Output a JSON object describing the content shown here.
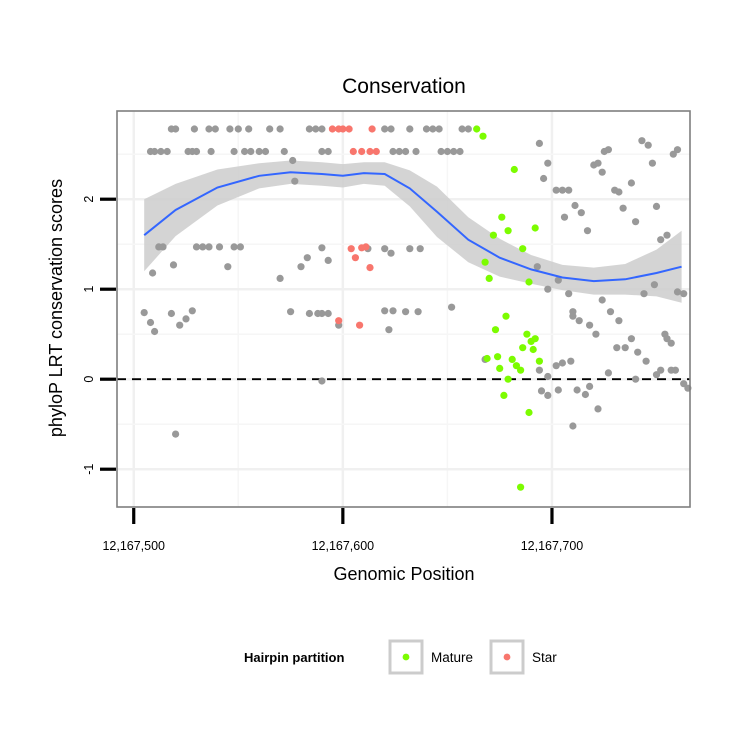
{
  "chart_data": {
    "type": "scatter",
    "title": "Conservation",
    "xlabel": "Genomic Position",
    "ylabel": "phyloP LRT conservation scores",
    "xlim": [
      12167492,
      12167766
    ],
    "ylim": [
      -1.42,
      2.98
    ],
    "x_ticks": [
      12167500,
      12167600,
      12167700
    ],
    "x_tick_labels": [
      "12,167,500",
      "12,167,600",
      "12,167,700"
    ],
    "y_ticks": [
      -1,
      0,
      1,
      2
    ],
    "y_tick_labels": [
      "-1",
      "0",
      "1",
      "2"
    ],
    "reference_line": {
      "y": 0,
      "style": "dashed"
    },
    "legend": {
      "title": "Hairpin partition",
      "position": "bottom",
      "entries": [
        {
          "label": "Mature",
          "color": "#7cfc00"
        },
        {
          "label": "Star",
          "color": "#f8766d"
        }
      ]
    },
    "colors": {
      "other": "#999999",
      "Mature": "#7cfc00",
      "Star": "#f8766d",
      "smooth": "#3366ff",
      "band": "#cccccc"
    },
    "series": [
      {
        "name": "Other",
        "points": [
          [
            12167508,
            2.53
          ],
          [
            12167510,
            2.53
          ],
          [
            12167513,
            2.53
          ],
          [
            12167516,
            2.53
          ],
          [
            12167526,
            2.53
          ],
          [
            12167528,
            2.53
          ],
          [
            12167530,
            2.53
          ],
          [
            12167537,
            2.53
          ],
          [
            12167548,
            2.53
          ],
          [
            12167553,
            2.53
          ],
          [
            12167556,
            2.53
          ],
          [
            12167560,
            2.53
          ],
          [
            12167563,
            2.53
          ],
          [
            12167572,
            2.53
          ],
          [
            12167590,
            2.53
          ],
          [
            12167593,
            2.53
          ],
          [
            12167624,
            2.53
          ],
          [
            12167627,
            2.53
          ],
          [
            12167630,
            2.53
          ],
          [
            12167635,
            2.53
          ],
          [
            12167647,
            2.53
          ],
          [
            12167650,
            2.53
          ],
          [
            12167653,
            2.53
          ],
          [
            12167656,
            2.53
          ],
          [
            12167518,
            2.78
          ],
          [
            12167520,
            2.78
          ],
          [
            12167529,
            2.78
          ],
          [
            12167536,
            2.78
          ],
          [
            12167539,
            2.78
          ],
          [
            12167546,
            2.78
          ],
          [
            12167550,
            2.78
          ],
          [
            12167555,
            2.78
          ],
          [
            12167565,
            2.78
          ],
          [
            12167570,
            2.78
          ],
          [
            12167584,
            2.78
          ],
          [
            12167587,
            2.78
          ],
          [
            12167590,
            2.78
          ],
          [
            12167620,
            2.78
          ],
          [
            12167623,
            2.78
          ],
          [
            12167632,
            2.78
          ],
          [
            12167640,
            2.78
          ],
          [
            12167643,
            2.78
          ],
          [
            12167646,
            2.78
          ],
          [
            12167657,
            2.78
          ],
          [
            12167660,
            2.78
          ],
          [
            12167576,
            2.43
          ],
          [
            12167577,
            2.2
          ],
          [
            12167612,
            1.45
          ],
          [
            12167620,
            1.45
          ],
          [
            12167623,
            1.4
          ],
          [
            12167637,
            1.45
          ],
          [
            12167632,
            1.45
          ],
          [
            12167590,
            1.46
          ],
          [
            12167593,
            1.32
          ],
          [
            12167505,
            0.74
          ],
          [
            12167508,
            0.63
          ],
          [
            12167510,
            0.53
          ],
          [
            12167518,
            0.73
          ],
          [
            12167522,
            0.6
          ],
          [
            12167525,
            0.67
          ],
          [
            12167528,
            0.76
          ],
          [
            12167545,
            1.25
          ],
          [
            12167570,
            1.12
          ],
          [
            12167575,
            0.75
          ],
          [
            12167580,
            1.25
          ],
          [
            12167583,
            1.35
          ],
          [
            12167584,
            0.73
          ],
          [
            12167588,
            0.73
          ],
          [
            12167590,
            0.73
          ],
          [
            12167593,
            0.73
          ],
          [
            12167598,
            0.6
          ],
          [
            12167620,
            0.76
          ],
          [
            12167622,
            0.55
          ],
          [
            12167624,
            0.76
          ],
          [
            12167630,
            0.75
          ],
          [
            12167636,
            0.75
          ],
          [
            12167652,
            0.8
          ],
          [
            12167668,
            0.22
          ],
          [
            12167590,
            -0.02
          ],
          [
            12167520,
            -0.61
          ],
          [
            12167512,
            1.47
          ],
          [
            12167530,
            1.47
          ],
          [
            12167533,
            1.47
          ],
          [
            12167536,
            1.47
          ],
          [
            12167541,
            1.47
          ],
          [
            12167548,
            1.47
          ],
          [
            12167551,
            1.47
          ],
          [
            12167509,
            1.18
          ],
          [
            12167514,
            1.47
          ],
          [
            12167519,
            1.27
          ],
          [
            12167694,
            2.62
          ],
          [
            12167696,
            2.23
          ],
          [
            12167698,
            2.4
          ],
          [
            12167702,
            2.1
          ],
          [
            12167705,
            2.1
          ],
          [
            12167708,
            2.1
          ],
          [
            12167711,
            1.93
          ],
          [
            12167706,
            1.8
          ],
          [
            12167714,
            1.85
          ],
          [
            12167717,
            1.65
          ],
          [
            12167720,
            2.38
          ],
          [
            12167722,
            2.4
          ],
          [
            12167724,
            2.3
          ],
          [
            12167725,
            2.53
          ],
          [
            12167727,
            2.55
          ],
          [
            12167730,
            2.1
          ],
          [
            12167732,
            2.08
          ],
          [
            12167734,
            1.9
          ],
          [
            12167738,
            2.18
          ],
          [
            12167740,
            1.75
          ],
          [
            12167743,
            2.65
          ],
          [
            12167746,
            2.6
          ],
          [
            12167748,
            2.4
          ],
          [
            12167750,
            1.92
          ],
          [
            12167752,
            1.55
          ],
          [
            12167755,
            1.6
          ],
          [
            12167758,
            2.5
          ],
          [
            12167760,
            2.55
          ],
          [
            12167693,
            1.25
          ],
          [
            12167698,
            1.0
          ],
          [
            12167703,
            1.1
          ],
          [
            12167708,
            0.95
          ],
          [
            12167710,
            0.75
          ],
          [
            12167713,
            0.65
          ],
          [
            12167718,
            0.6
          ],
          [
            12167721,
            0.5
          ],
          [
            12167724,
            0.88
          ],
          [
            12167728,
            0.75
          ],
          [
            12167732,
            0.65
          ],
          [
            12167735,
            0.35
          ],
          [
            12167738,
            0.45
          ],
          [
            12167741,
            0.3
          ],
          [
            12167744,
            0.95
          ],
          [
            12167749,
            1.05
          ],
          [
            12167754,
            0.5
          ],
          [
            12167757,
            0.4
          ],
          [
            12167760,
            0.97
          ],
          [
            12167763,
            0.95
          ],
          [
            12167694,
            0.1
          ],
          [
            12167698,
            0.03
          ],
          [
            12167702,
            0.15
          ],
          [
            12167705,
            0.18
          ],
          [
            12167709,
            0.2
          ],
          [
            12167712,
            -0.12
          ],
          [
            12167716,
            -0.17
          ],
          [
            12167718,
            -0.08
          ],
          [
            12167722,
            -0.33
          ],
          [
            12167727,
            0.07
          ],
          [
            12167731,
            0.35
          ],
          [
            12167740,
            0.0
          ],
          [
            12167745,
            0.2
          ],
          [
            12167750,
            0.05
          ],
          [
            12167752,
            0.1
          ],
          [
            12167755,
            0.45
          ],
          [
            12167757,
            0.1
          ],
          [
            12167759,
            0.1
          ],
          [
            12167763,
            -0.05
          ],
          [
            12167765,
            -0.1
          ],
          [
            12167710,
            -0.52
          ],
          [
            12167703,
            -0.12
          ],
          [
            12167698,
            -0.18
          ],
          [
            12167695,
            -0.13
          ],
          [
            12167710,
            0.7
          ]
        ]
      },
      {
        "name": "Mature",
        "points": [
          [
            12167664,
            2.78
          ],
          [
            12167667,
            2.7
          ],
          [
            12167672,
            1.6
          ],
          [
            12167676,
            1.8
          ],
          [
            12167679,
            1.65
          ],
          [
            12167668,
            1.3
          ],
          [
            12167670,
            1.12
          ],
          [
            12167673,
            0.55
          ],
          [
            12167678,
            0.7
          ],
          [
            12167669,
            0.23
          ],
          [
            12167674,
            0.25
          ],
          [
            12167675,
            0.12
          ],
          [
            12167677,
            -0.18
          ],
          [
            12167679,
            0.0
          ],
          [
            12167681,
            0.22
          ],
          [
            12167683,
            0.15
          ],
          [
            12167685,
            0.1
          ],
          [
            12167686,
            0.35
          ],
          [
            12167688,
            0.5
          ],
          [
            12167690,
            0.42
          ],
          [
            12167691,
            0.33
          ],
          [
            12167692,
            0.45
          ],
          [
            12167694,
            0.2
          ],
          [
            12167686,
            1.45
          ],
          [
            12167689,
            1.08
          ],
          [
            12167692,
            1.68
          ],
          [
            12167682,
            2.33
          ],
          [
            12167689,
            -0.37
          ],
          [
            12167685,
            -1.2
          ]
        ]
      },
      {
        "name": "Star",
        "points": [
          [
            12167595,
            2.78
          ],
          [
            12167598,
            2.78
          ],
          [
            12167600,
            2.78
          ],
          [
            12167603,
            2.78
          ],
          [
            12167614,
            2.78
          ],
          [
            12167605,
            2.53
          ],
          [
            12167609,
            2.53
          ],
          [
            12167613,
            2.53
          ],
          [
            12167616,
            2.53
          ],
          [
            12167604,
            1.45
          ],
          [
            12167606,
            1.35
          ],
          [
            12167609,
            1.46
          ],
          [
            12167611,
            1.47
          ],
          [
            12167613,
            1.24
          ],
          [
            12167598,
            0.65
          ],
          [
            12167608,
            0.6
          ]
        ]
      }
    ],
    "smooth": {
      "method": "loess",
      "fit": [
        [
          12167505,
          1.6
        ],
        [
          12167520,
          1.88
        ],
        [
          12167540,
          2.13
        ],
        [
          12167560,
          2.26
        ],
        [
          12167575,
          2.3
        ],
        [
          12167590,
          2.28
        ],
        [
          12167600,
          2.26
        ],
        [
          12167610,
          2.29
        ],
        [
          12167620,
          2.28
        ],
        [
          12167632,
          2.12
        ],
        [
          12167645,
          1.86
        ],
        [
          12167660,
          1.55
        ],
        [
          12167675,
          1.35
        ],
        [
          12167690,
          1.22
        ],
        [
          12167705,
          1.13
        ],
        [
          12167720,
          1.09
        ],
        [
          12167735,
          1.11
        ],
        [
          12167750,
          1.18
        ],
        [
          12167762,
          1.25
        ]
      ],
      "upper": [
        [
          12167505,
          2.0
        ],
        [
          12167520,
          2.17
        ],
        [
          12167540,
          2.33
        ],
        [
          12167560,
          2.4
        ],
        [
          12167575,
          2.43
        ],
        [
          12167590,
          2.41
        ],
        [
          12167600,
          2.39
        ],
        [
          12167610,
          2.41
        ],
        [
          12167620,
          2.41
        ],
        [
          12167632,
          2.32
        ],
        [
          12167645,
          2.14
        ],
        [
          12167660,
          1.8
        ],
        [
          12167675,
          1.56
        ],
        [
          12167690,
          1.38
        ],
        [
          12167705,
          1.27
        ],
        [
          12167720,
          1.24
        ],
        [
          12167735,
          1.28
        ],
        [
          12167750,
          1.44
        ],
        [
          12167762,
          1.65
        ]
      ],
      "lower": [
        [
          12167505,
          1.2
        ],
        [
          12167520,
          1.59
        ],
        [
          12167540,
          1.93
        ],
        [
          12167560,
          2.12
        ],
        [
          12167575,
          2.17
        ],
        [
          12167590,
          2.15
        ],
        [
          12167600,
          2.13
        ],
        [
          12167610,
          2.17
        ],
        [
          12167620,
          2.15
        ],
        [
          12167632,
          1.92
        ],
        [
          12167645,
          1.58
        ],
        [
          12167660,
          1.3
        ],
        [
          12167675,
          1.14
        ],
        [
          12167690,
          1.06
        ],
        [
          12167705,
          0.99
        ],
        [
          12167720,
          0.94
        ],
        [
          12167735,
          0.94
        ],
        [
          12167750,
          0.92
        ],
        [
          12167762,
          0.85
        ]
      ]
    }
  }
}
